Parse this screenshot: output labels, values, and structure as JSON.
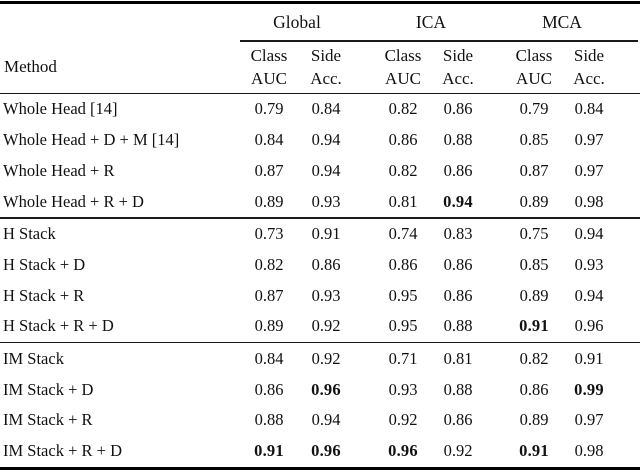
{
  "table": {
    "method_header": "Method",
    "group_headers": [
      "Global",
      "ICA",
      "MCA"
    ],
    "subheader": {
      "class_top": "Class",
      "class_bottom": "AUC",
      "side_top": "Side",
      "side_bottom": "Acc."
    },
    "blocks": [
      {
        "rows": [
          {
            "method": "Whole Head [14]",
            "values": [
              "0.79",
              "0.84",
              "0.82",
              "0.86",
              "0.79",
              "0.84"
            ],
            "bold": [
              false,
              false,
              false,
              false,
              false,
              false
            ]
          },
          {
            "method": "Whole Head + D + M [14]",
            "values": [
              "0.84",
              "0.94",
              "0.86",
              "0.88",
              "0.85",
              "0.97"
            ],
            "bold": [
              false,
              false,
              false,
              false,
              false,
              false
            ]
          },
          {
            "method": "Whole Head + R",
            "values": [
              "0.87",
              "0.94",
              "0.82",
              "0.86",
              "0.87",
              "0.97"
            ],
            "bold": [
              false,
              false,
              false,
              false,
              false,
              false
            ]
          },
          {
            "method": "Whole Head + R + D",
            "values": [
              "0.89",
              "0.93",
              "0.81",
              "0.94",
              "0.89",
              "0.98"
            ],
            "bold": [
              false,
              false,
              false,
              true,
              false,
              false
            ]
          }
        ]
      },
      {
        "rows": [
          {
            "method": "H Stack",
            "values": [
              "0.73",
              "0.91",
              "0.74",
              "0.83",
              "0.75",
              "0.94"
            ],
            "bold": [
              false,
              false,
              false,
              false,
              false,
              false
            ]
          },
          {
            "method": "H Stack + D",
            "values": [
              "0.82",
              "0.86",
              "0.86",
              "0.86",
              "0.85",
              "0.93"
            ],
            "bold": [
              false,
              false,
              false,
              false,
              false,
              false
            ]
          },
          {
            "method": "H Stack + R",
            "values": [
              "0.87",
              "0.93",
              "0.95",
              "0.86",
              "0.89",
              "0.94"
            ],
            "bold": [
              false,
              false,
              false,
              false,
              false,
              false
            ]
          },
          {
            "method": "H Stack + R + D",
            "values": [
              "0.89",
              "0.92",
              "0.95",
              "0.88",
              "0.91",
              "0.96"
            ],
            "bold": [
              false,
              false,
              false,
              false,
              true,
              false
            ]
          }
        ]
      },
      {
        "rows": [
          {
            "method": "IM Stack",
            "values": [
              "0.84",
              "0.92",
              "0.71",
              "0.81",
              "0.82",
              "0.91"
            ],
            "bold": [
              false,
              false,
              false,
              false,
              false,
              false
            ]
          },
          {
            "method": "IM Stack + D",
            "values": [
              "0.86",
              "0.96",
              "0.93",
              "0.88",
              "0.86",
              "0.99"
            ],
            "bold": [
              false,
              true,
              false,
              false,
              false,
              true
            ]
          },
          {
            "method": "IM Stack + R",
            "values": [
              "0.88",
              "0.94",
              "0.92",
              "0.86",
              "0.89",
              "0.97"
            ],
            "bold": [
              false,
              false,
              false,
              false,
              false,
              false
            ]
          },
          {
            "method": "IM Stack + R + D",
            "values": [
              "0.91",
              "0.96",
              "0.96",
              "0.92",
              "0.91",
              "0.98"
            ],
            "bold": [
              true,
              true,
              true,
              false,
              true,
              false
            ]
          }
        ]
      }
    ]
  }
}
